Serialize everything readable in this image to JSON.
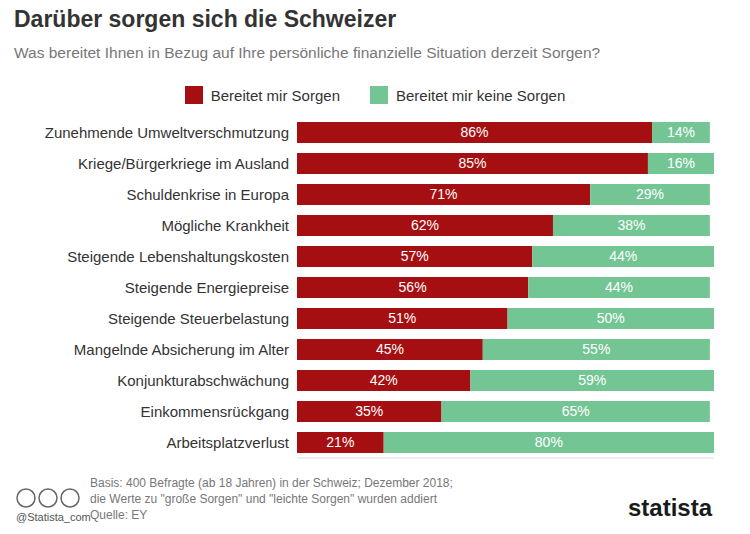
{
  "chart_data": {
    "type": "bar",
    "title": "Darüber sorgen sich die Schweizer",
    "subtitle": "Was bereitet Ihnen in Bezug auf Ihre persönliche finanzielle Situation derzeit Sorgen?",
    "orientation": "horizontal",
    "stacked": true,
    "data_labels": true,
    "tick_labels": "y",
    "grid": false,
    "legend": "top",
    "categories": [
      "Zunehmende Umweltverschmutzung",
      "Kriege/Bürgerkriege im Ausland",
      "Schuldenkrise in Europa",
      "Mögliche Krankheit",
      "Steigende Lebenshaltungskosten",
      "Steigende Energiepreise",
      "Steigende Steuerbelastung",
      "Mangelnde Absicherung im Alter",
      "Konjunkturabschwächung",
      "Einkommensrückgang",
      "Arbeitsplatzverlust"
    ],
    "xlim": [
      0,
      101
    ],
    "series": [
      {
        "name": "Bereitet mir Sorgen",
        "color": "#a50f12",
        "values": [
          86,
          85,
          71,
          62,
          57,
          56,
          51,
          45,
          42,
          35,
          21
        ],
        "value_labels": [
          "86%",
          "85%",
          "71%",
          "62%",
          "57%",
          "56%",
          "51%",
          "45%",
          "42%",
          "35%",
          "21%"
        ]
      },
      {
        "name": "Bereitet mir keine Sorgen",
        "color": "#73c594",
        "values": [
          14,
          16,
          29,
          38,
          44,
          44,
          50,
          55,
          59,
          65,
          80
        ],
        "value_labels": [
          "14%",
          "16%",
          "29%",
          "38%",
          "44%",
          "44%",
          "50%",
          "55%",
          "59%",
          "65%",
          "80%"
        ]
      }
    ],
    "footnote": [
      "Basis: 400 Befragte (ab 18 Jahren) in der Schweiz; Dezember 2018;",
      "die Werte zu \"große Sorgen\" und \"leichte Sorgen\" wurden addiert"
    ],
    "source": "Quelle: EY",
    "credit": "@Statista_com",
    "logo": "statista"
  }
}
